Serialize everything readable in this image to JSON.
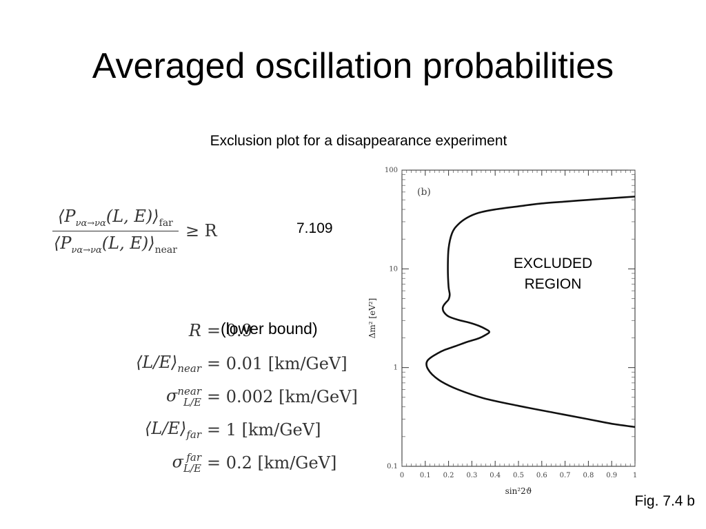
{
  "slide": {
    "title": "Averaged oscillation probabilities",
    "subtitle": "Exclusion plot for a disappearance experiment",
    "equation_number": "7.109",
    "lower_bound_note": "(lower bound)",
    "figure_caption": "Fig. 7.4 b"
  },
  "equation": {
    "numerator": "⟨P",
    "numerator_sub": "να→να",
    "numerator_arg": "(L, E)⟩",
    "numerator_tag": "far",
    "denominator": "⟨P",
    "denominator_sub": "να→να",
    "denominator_arg": "(L, E)⟩",
    "denominator_tag": "near",
    "relation": "≥ R"
  },
  "parameters": [
    {
      "lhs": "R",
      "lhs_sub": "",
      "lhs_sup": "",
      "rhs": "= 0.9"
    },
    {
      "lhs": "⟨L/E⟩",
      "lhs_sub": "near",
      "lhs_sup": "",
      "rhs": "= 0.01 [km/GeV]"
    },
    {
      "lhs": "σ",
      "lhs_sub": "L/E",
      "lhs_sup": "near",
      "rhs": "= 0.002 [km/GeV]"
    },
    {
      "lhs": "⟨L/E⟩",
      "lhs_sub": "far",
      "lhs_sup": "",
      "rhs": "= 1 [km/GeV]"
    },
    {
      "lhs": "σ",
      "lhs_sub": "L/E",
      "lhs_sup": "far",
      "rhs": "= 0.2 [km/GeV]"
    }
  ],
  "chart_data": {
    "type": "line",
    "panel_label": "(b)",
    "xlabel": "sin²2ϑ",
    "ylabel": "Δm² [eV²]",
    "xlim": [
      0,
      1
    ],
    "ylim": [
      0.1,
      100
    ],
    "yscale": "log",
    "x_ticks": [
      "0",
      "0.1",
      "0.2",
      "0.3",
      "0.4",
      "0.5",
      "0.6",
      "0.7",
      "0.8",
      "0.9",
      "1"
    ],
    "x_tick_values": [
      0,
      0.1,
      0.2,
      0.3,
      0.4,
      0.5,
      0.6,
      0.7,
      0.8,
      0.9,
      1
    ],
    "y_ticks": [
      "0.1",
      "1",
      "10",
      "100"
    ],
    "y_tick_values": [
      0.1,
      1,
      10,
      100
    ],
    "annotation": [
      "EXCLUDED",
      "REGION"
    ],
    "line_color": "#111111",
    "series": [
      {
        "x": [
          1.0,
          0.9,
          0.8,
          0.7,
          0.6,
          0.5,
          0.4,
          0.33,
          0.28,
          0.24,
          0.215,
          0.2,
          0.197,
          0.2,
          0.205,
          0.2,
          0.19,
          0.18,
          0.175,
          0.18,
          0.2,
          0.24,
          0.29,
          0.33,
          0.36,
          0.375,
          0.36,
          0.33,
          0.28,
          0.23,
          0.18,
          0.15,
          0.125,
          0.11,
          0.105,
          0.11,
          0.13,
          0.17,
          0.24,
          0.35,
          0.5,
          0.65,
          0.8,
          0.9,
          1.0
        ],
        "y": [
          54,
          52,
          50,
          48,
          46,
          43,
          40,
          37,
          33,
          28,
          23,
          16,
          10,
          6.6,
          5.5,
          4.9,
          4.6,
          4.3,
          4.0,
          3.65,
          3.3,
          3.05,
          2.85,
          2.65,
          2.45,
          2.3,
          2.15,
          1.98,
          1.82,
          1.65,
          1.5,
          1.38,
          1.27,
          1.18,
          1.09,
          0.98,
          0.85,
          0.72,
          0.6,
          0.49,
          0.41,
          0.35,
          0.3,
          0.27,
          0.25
        ]
      }
    ]
  }
}
